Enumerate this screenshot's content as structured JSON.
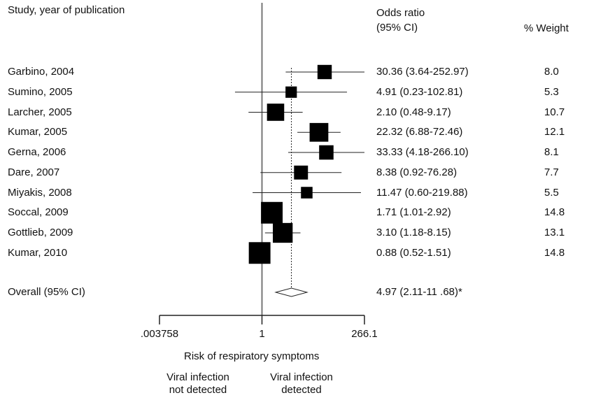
{
  "headers": {
    "study": "Study, year of publication",
    "or_line1": "Odds ratio",
    "or_line2": "(95% CI)",
    "weight": "% Weight"
  },
  "chart_data": {
    "type": "forest",
    "x_scale": "log",
    "xlim": [
      0.003758,
      266.1
    ],
    "x_ticks": [
      ".003758",
      "1",
      "266.1"
    ],
    "xlabel": "Risk of respiratory symptoms",
    "direction_left": [
      "Viral infection",
      "not detected"
    ],
    "direction_right": [
      "Viral infection",
      "detected"
    ],
    "null_value": 1,
    "studies": [
      {
        "label": "Garbino, 2004",
        "or": 30.36,
        "lo": 3.64,
        "hi": 252.97,
        "or_text": "30.36 (3.64-252.97)",
        "weight": 8.0,
        "weight_text": "8.0",
        "arrow_right": true
      },
      {
        "label": "Sumino, 2005",
        "or": 4.91,
        "lo": 0.23,
        "hi": 102.81,
        "or_text": "4.91 (0.23-102.81)",
        "weight": 5.3,
        "weight_text": "5.3"
      },
      {
        "label": "Larcher, 2005",
        "or": 2.1,
        "lo": 0.48,
        "hi": 9.17,
        "or_text": "2.10 (0.48-9.17)",
        "weight": 10.7,
        "weight_text": "10.7"
      },
      {
        "label": "Kumar, 2005",
        "or": 22.32,
        "lo": 6.88,
        "hi": 72.46,
        "or_text": "22.32 (6.88-72.46)",
        "weight": 12.1,
        "weight_text": "12.1"
      },
      {
        "label": "Gerna, 2006",
        "or": 33.33,
        "lo": 4.18,
        "hi": 266.1,
        "or_text": "33.33 (4.18-266.10)",
        "weight": 8.1,
        "weight_text": "8.1"
      },
      {
        "label": "Dare, 2007",
        "or": 8.38,
        "lo": 0.92,
        "hi": 76.28,
        "or_text": "8.38 (0.92-76.28)",
        "weight": 7.7,
        "weight_text": "7.7"
      },
      {
        "label": "Miyakis, 2008",
        "or": 11.47,
        "lo": 0.6,
        "hi": 219.88,
        "or_text": "11.47 (0.60-219.88)",
        "weight": 5.5,
        "weight_text": "5.5"
      },
      {
        "label": "Soccal, 2009",
        "or": 1.71,
        "lo": 1.01,
        "hi": 2.92,
        "or_text": "1.71 (1.01-2.92)",
        "weight": 14.8,
        "weight_text": "14.8"
      },
      {
        "label": "Gottlieb, 2009",
        "or": 3.1,
        "lo": 1.18,
        "hi": 8.15,
        "or_text": "3.10 (1.18-8.15)",
        "weight": 13.1,
        "weight_text": "13.1"
      },
      {
        "label": "Kumar, 2010",
        "or": 0.88,
        "lo": 0.52,
        "hi": 1.51,
        "or_text": "0.88 (0.52-1.51)",
        "weight": 14.8,
        "weight_text": "14.8"
      }
    ],
    "overall": {
      "label": "Overall (95% CI)",
      "or": 4.97,
      "lo": 2.11,
      "hi": 11.68,
      "or_text": "4.97 (2.11-11 .68)*"
    }
  }
}
